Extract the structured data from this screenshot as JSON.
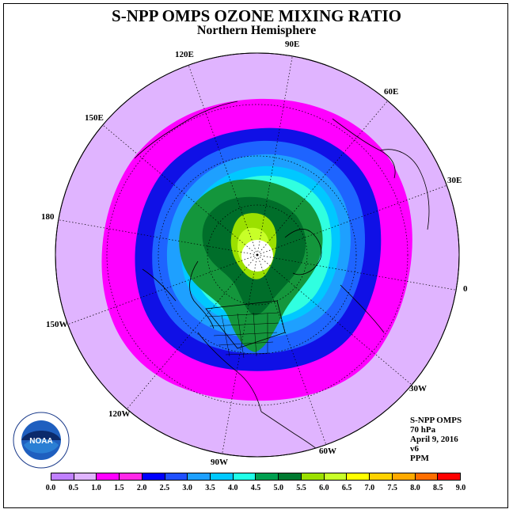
{
  "title": "S-NPP OMPS OZONE MIXING RATIO",
  "subtitle": "Northern Hemisphere",
  "longitude_labels": [
    {
      "text": "90E",
      "name": "lon-90e"
    },
    {
      "text": "60E",
      "name": "lon-60e"
    },
    {
      "text": "120E",
      "name": "lon-120e"
    },
    {
      "text": "150E",
      "name": "lon-150e"
    },
    {
      "text": "30E",
      "name": "lon-30e"
    },
    {
      "text": "180",
      "name": "lon-180"
    },
    {
      "text": "0",
      "name": "lon-0"
    },
    {
      "text": "150W",
      "name": "lon-150w"
    },
    {
      "text": "30W",
      "name": "lon-30w"
    },
    {
      "text": "120W",
      "name": "lon-120w"
    },
    {
      "text": "60W",
      "name": "lon-60w"
    },
    {
      "text": "90W",
      "name": "lon-90w"
    }
  ],
  "info": {
    "instrument": "S-NPP OMPS",
    "level": "70 hPa",
    "date": "April 9, 2016",
    "version": "v6",
    "units": "PPM"
  },
  "colorbar": {
    "ticks": [
      "0.0",
      "0.5",
      "1.0",
      "1.5",
      "2.0",
      "2.5",
      "3.0",
      "3.5",
      "4.0",
      "4.5",
      "5.0",
      "5.5",
      "6.0",
      "6.5",
      "7.0",
      "7.5",
      "8.0",
      "8.5",
      "9.0"
    ],
    "colors": [
      "#c080ff",
      "#e0b4ff",
      "#ff00ff",
      "#ff28e8",
      "#0000ff",
      "#2050ff",
      "#1ea0ff",
      "#00c8ff",
      "#20ffe8",
      "#00a050",
      "#007a30",
      "#9be000",
      "#c8ff28",
      "#ffff00",
      "#ffd200",
      "#ffaa00",
      "#ff6e00",
      "#ff0000",
      "#8b5a3c"
    ]
  },
  "logo_text": "NOAA"
}
